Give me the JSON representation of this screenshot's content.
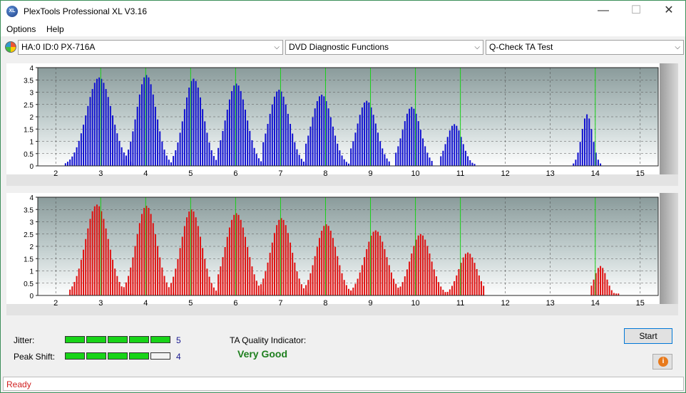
{
  "window": {
    "title": "PlexTools Professional XL V3.16",
    "icon_label": "XL",
    "controls": {
      "minimize": "—",
      "maximize": "☐",
      "close": "✕"
    }
  },
  "menu": {
    "items": [
      "Options",
      "Help"
    ]
  },
  "toolbar": {
    "drive": "HA:0 ID:0  PX-716A",
    "function": "DVD Diagnostic Functions",
    "test": "Q-Check TA Test",
    "arrow": "⌵"
  },
  "chart_data": [
    {
      "type": "bar",
      "name": "land-ta-chart",
      "color": "#1010d0",
      "xlim": [
        1.6,
        15.4
      ],
      "ylim": [
        0,
        4
      ],
      "x_ticks": [
        "2",
        "3",
        "4",
        "5",
        "6",
        "7",
        "8",
        "9",
        "10",
        "11",
        "12",
        "13",
        "14",
        "15"
      ],
      "y_ticks": [
        "0",
        "0.5",
        "1",
        "1.5",
        "2",
        "2.5",
        "3",
        "3.5",
        "4"
      ],
      "peaks": [
        {
          "x": 2.95,
          "h": 3.6,
          "w": 0.42,
          "lo": 2.2,
          "hi": 3.7
        },
        {
          "x": 4.0,
          "h": 3.7,
          "w": 0.32,
          "lo": 3.5,
          "hi": 4.55
        },
        {
          "x": 5.05,
          "h": 3.55,
          "w": 0.32,
          "lo": 4.6,
          "hi": 5.55
        },
        {
          "x": 6.0,
          "h": 3.35,
          "w": 0.34,
          "lo": 5.6,
          "hi": 6.6
        },
        {
          "x": 6.95,
          "h": 3.1,
          "w": 0.34,
          "lo": 6.6,
          "hi": 7.55
        },
        {
          "x": 7.9,
          "h": 2.9,
          "w": 0.34,
          "lo": 7.55,
          "hi": 8.5
        },
        {
          "x": 8.9,
          "h": 2.65,
          "w": 0.32,
          "lo": 8.55,
          "hi": 9.4
        },
        {
          "x": 9.9,
          "h": 2.4,
          "w": 0.3,
          "lo": 9.55,
          "hi": 10.35
        },
        {
          "x": 10.85,
          "h": 1.7,
          "w": 0.26,
          "lo": 10.55,
          "hi": 11.3
        },
        {
          "x": 13.8,
          "h": 2.1,
          "w": 0.18,
          "lo": 13.5,
          "hi": 14.1
        }
      ],
      "green_lines": [
        3,
        4,
        5,
        6,
        7,
        8,
        9,
        10,
        11,
        14
      ]
    },
    {
      "type": "bar",
      "name": "pit-ta-chart",
      "color": "#e01010",
      "xlim": [
        1.6,
        15.4
      ],
      "ylim": [
        0,
        4
      ],
      "x_ticks": [
        "2",
        "3",
        "4",
        "5",
        "6",
        "7",
        "8",
        "9",
        "10",
        "11",
        "12",
        "13",
        "14",
        "15"
      ],
      "y_ticks": [
        "0",
        "0.5",
        "1",
        "1.5",
        "2",
        "2.5",
        "3",
        "3.5",
        "4"
      ],
      "peaks": [
        {
          "x": 2.9,
          "h": 3.7,
          "w": 0.38,
          "lo": 2.3,
          "hi": 3.7
        },
        {
          "x": 4.0,
          "h": 3.65,
          "w": 0.34,
          "lo": 3.5,
          "hi": 4.6
        },
        {
          "x": 5.0,
          "h": 3.5,
          "w": 0.34,
          "lo": 4.55,
          "hi": 5.6
        },
        {
          "x": 6.0,
          "h": 3.35,
          "w": 0.36,
          "lo": 5.6,
          "hi": 6.6
        },
        {
          "x": 7.0,
          "h": 3.15,
          "w": 0.34,
          "lo": 6.55,
          "hi": 7.6
        },
        {
          "x": 8.0,
          "h": 2.9,
          "w": 0.34,
          "lo": 7.55,
          "hi": 8.6
        },
        {
          "x": 9.1,
          "h": 2.65,
          "w": 0.36,
          "lo": 8.55,
          "hi": 9.6
        },
        {
          "x": 10.1,
          "h": 2.5,
          "w": 0.34,
          "lo": 9.6,
          "hi": 10.65
        },
        {
          "x": 11.15,
          "h": 1.75,
          "w": 0.3,
          "lo": 10.6,
          "hi": 11.5
        },
        {
          "x": 14.1,
          "h": 1.2,
          "w": 0.2,
          "lo": 13.9,
          "hi": 14.5
        }
      ],
      "green_lines": [
        3,
        4,
        5,
        6,
        7,
        8,
        9,
        10,
        11,
        14
      ]
    }
  ],
  "results": {
    "jitter_label": "Jitter:",
    "jitter_value": "5",
    "jitter_level": 5,
    "peak_shift_label": "Peak Shift:",
    "peak_shift_value": "4",
    "peak_shift_level": 4,
    "ta_quality_label": "TA Quality Indicator:",
    "ta_quality_value": "Very Good",
    "start_label": "Start",
    "info_glyph": "i"
  },
  "status": {
    "text": "Ready"
  },
  "colors": {
    "meter_on": "#18d418",
    "meter_off": "#f4f4f4",
    "status_text": "#d02020",
    "quality_text": "#1e7f1e"
  }
}
